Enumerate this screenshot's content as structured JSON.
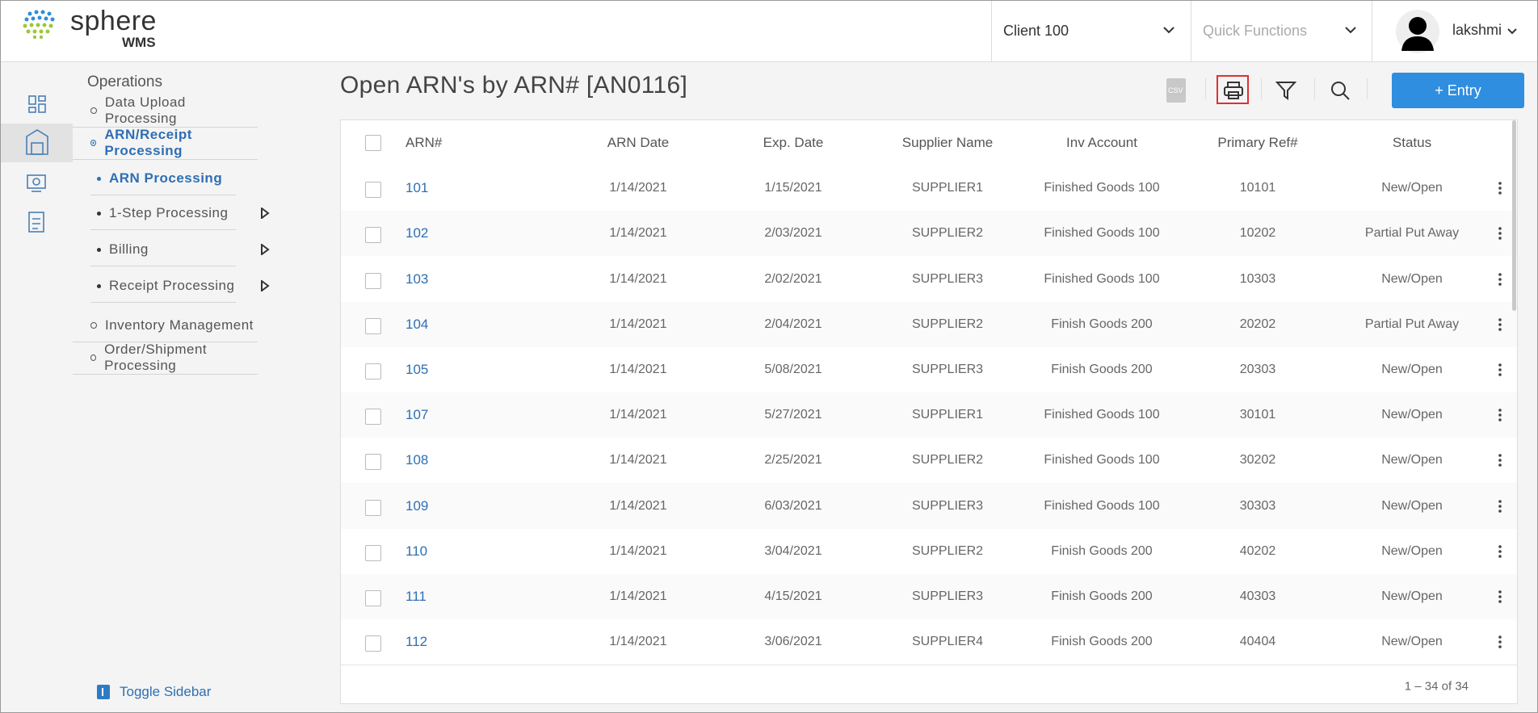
{
  "header": {
    "logo_text": "sphere",
    "logo_sub": "WMS",
    "client": "Client 100",
    "quick_functions": "Quick Functions",
    "user": "lakshmi"
  },
  "sidebar": {
    "section": "Operations",
    "items": [
      {
        "label": "Data Upload Processing",
        "level": 1,
        "active": false,
        "arrow": false
      },
      {
        "label": "ARN/Receipt Processing",
        "level": 1,
        "active": true,
        "arrow": false
      },
      {
        "label": "ARN Processing",
        "level": 2,
        "active": true,
        "arrow": false
      },
      {
        "label": "1-Step Processing",
        "level": 2,
        "active": false,
        "arrow": true
      },
      {
        "label": "Billing",
        "level": 2,
        "active": false,
        "arrow": true
      },
      {
        "label": "Receipt Processing",
        "level": 2,
        "active": false,
        "arrow": true
      },
      {
        "label": "Inventory Management",
        "level": 1,
        "active": false,
        "arrow": false
      },
      {
        "label": "Order/Shipment Processing",
        "level": 1,
        "active": false,
        "arrow": false
      }
    ],
    "toggle": "Toggle Sidebar"
  },
  "page": {
    "title": "Open ARN's by ARN# [AN0116]",
    "csv": "CSV",
    "entry_button": "+ Entry"
  },
  "table": {
    "columns": [
      "ARN#",
      "ARN Date",
      "Exp. Date",
      "Supplier Name",
      "Inv Account",
      "Primary Ref#",
      "Status"
    ],
    "rows": [
      [
        "101",
        "1/14/2021",
        "1/15/2021",
        "SUPPLIER1",
        "Finished Goods 100",
        "10101",
        "New/Open"
      ],
      [
        "102",
        "1/14/2021",
        "2/03/2021",
        "SUPPLIER2",
        "Finished Goods 100",
        "10202",
        "Partial Put Away"
      ],
      [
        "103",
        "1/14/2021",
        "2/02/2021",
        "SUPPLIER3",
        "Finished Goods 100",
        "10303",
        "New/Open"
      ],
      [
        "104",
        "1/14/2021",
        "2/04/2021",
        "SUPPLIER2",
        "Finish Goods 200",
        "20202",
        "Partial Put Away"
      ],
      [
        "105",
        "1/14/2021",
        "5/08/2021",
        "SUPPLIER3",
        "Finish Goods 200",
        "20303",
        "New/Open"
      ],
      [
        "107",
        "1/14/2021",
        "5/27/2021",
        "SUPPLIER1",
        "Finished Goods 100",
        "30101",
        "New/Open"
      ],
      [
        "108",
        "1/14/2021",
        "2/25/2021",
        "SUPPLIER2",
        "Finished Goods 100",
        "30202",
        "New/Open"
      ],
      [
        "109",
        "1/14/2021",
        "6/03/2021",
        "SUPPLIER3",
        "Finished Goods 100",
        "30303",
        "New/Open"
      ],
      [
        "110",
        "1/14/2021",
        "3/04/2021",
        "SUPPLIER2",
        "Finish Goods 200",
        "40202",
        "New/Open"
      ],
      [
        "111",
        "1/14/2021",
        "4/15/2021",
        "SUPPLIER3",
        "Finish Goods 200",
        "40303",
        "New/Open"
      ],
      [
        "112",
        "1/14/2021",
        "3/06/2021",
        "SUPPLIER4",
        "Finish Goods 200",
        "40404",
        "New/Open"
      ]
    ],
    "pagination": "1 – 34 of 34"
  }
}
